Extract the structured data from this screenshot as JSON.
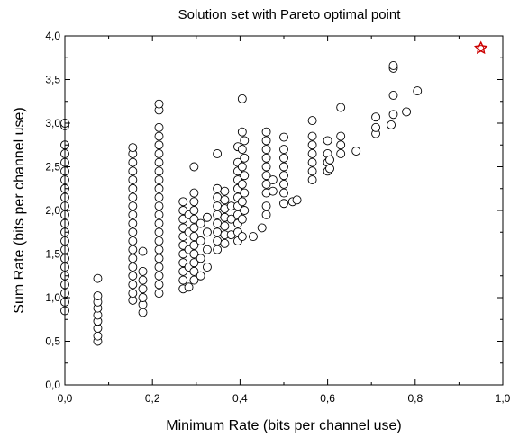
{
  "chart_data": {
    "type": "scatter",
    "title": "Solution set with Pareto optimal point",
    "xlabel": "Minimum Rate (bits per channel use)",
    "ylabel": "Sum Rate (bits per channel use)",
    "xlim": [
      0,
      1
    ],
    "ylim": [
      0,
      4
    ],
    "x_ticks": [
      "0,0",
      "0,2",
      "0,4",
      "0,6",
      "0,8",
      "1,0"
    ],
    "y_ticks": [
      "0,0",
      "0,5",
      "1,0",
      "1,5",
      "2,0",
      "2,5",
      "3,0",
      "3,5",
      "4,0"
    ],
    "grid": false,
    "legend": "none",
    "marker_color": "#000000",
    "pareto_color": "#cc0000",
    "series": [
      {
        "marker": "circle",
        "points": [
          [
            0.0,
            0.85
          ],
          [
            0.0,
            0.95
          ],
          [
            0.0,
            1.05
          ],
          [
            0.0,
            1.15
          ],
          [
            0.0,
            1.25
          ],
          [
            0.0,
            1.35
          ],
          [
            0.0,
            1.45
          ],
          [
            0.0,
            1.55
          ],
          [
            0.0,
            1.65
          ],
          [
            0.0,
            1.75
          ],
          [
            0.0,
            1.85
          ],
          [
            0.0,
            1.95
          ],
          [
            0.0,
            2.05
          ],
          [
            0.0,
            2.15
          ],
          [
            0.0,
            2.25
          ],
          [
            0.0,
            2.35
          ],
          [
            0.0,
            2.45
          ],
          [
            0.0,
            2.55
          ],
          [
            0.0,
            2.65
          ],
          [
            0.0,
            2.75
          ],
          [
            0.0,
            2.97
          ],
          [
            0.0,
            3.0
          ],
          [
            0.075,
            0.5
          ],
          [
            0.075,
            0.56
          ],
          [
            0.075,
            0.65
          ],
          [
            0.075,
            0.73
          ],
          [
            0.075,
            0.8
          ],
          [
            0.075,
            0.88
          ],
          [
            0.075,
            0.95
          ],
          [
            0.075,
            1.02
          ],
          [
            0.075,
            1.22
          ],
          [
            0.155,
            0.97
          ],
          [
            0.155,
            1.05
          ],
          [
            0.155,
            1.15
          ],
          [
            0.155,
            1.25
          ],
          [
            0.155,
            1.35
          ],
          [
            0.155,
            1.45
          ],
          [
            0.155,
            1.55
          ],
          [
            0.155,
            1.65
          ],
          [
            0.155,
            1.75
          ],
          [
            0.155,
            1.85
          ],
          [
            0.155,
            1.95
          ],
          [
            0.155,
            2.05
          ],
          [
            0.155,
            2.15
          ],
          [
            0.155,
            2.25
          ],
          [
            0.155,
            2.35
          ],
          [
            0.155,
            2.45
          ],
          [
            0.155,
            2.55
          ],
          [
            0.155,
            2.65
          ],
          [
            0.155,
            2.72
          ],
          [
            0.178,
            0.83
          ],
          [
            0.178,
            0.92
          ],
          [
            0.178,
            1.0
          ],
          [
            0.178,
            1.1
          ],
          [
            0.178,
            1.2
          ],
          [
            0.178,
            1.3
          ],
          [
            0.178,
            1.53
          ],
          [
            0.215,
            1.05
          ],
          [
            0.215,
            1.15
          ],
          [
            0.215,
            1.25
          ],
          [
            0.215,
            1.35
          ],
          [
            0.215,
            1.45
          ],
          [
            0.215,
            1.55
          ],
          [
            0.215,
            1.65
          ],
          [
            0.215,
            1.75
          ],
          [
            0.215,
            1.85
          ],
          [
            0.215,
            1.95
          ],
          [
            0.215,
            2.05
          ],
          [
            0.215,
            2.15
          ],
          [
            0.215,
            2.25
          ],
          [
            0.215,
            2.35
          ],
          [
            0.215,
            2.45
          ],
          [
            0.215,
            2.55
          ],
          [
            0.215,
            2.65
          ],
          [
            0.215,
            2.75
          ],
          [
            0.215,
            2.85
          ],
          [
            0.215,
            2.95
          ],
          [
            0.215,
            3.15
          ],
          [
            0.215,
            3.22
          ],
          [
            0.27,
            1.1
          ],
          [
            0.27,
            1.2
          ],
          [
            0.27,
            1.3
          ],
          [
            0.27,
            1.4
          ],
          [
            0.27,
            1.5
          ],
          [
            0.27,
            1.6
          ],
          [
            0.27,
            1.7
          ],
          [
            0.27,
            1.8
          ],
          [
            0.27,
            1.9
          ],
          [
            0.27,
            2.0
          ],
          [
            0.27,
            2.1
          ],
          [
            0.283,
            1.12
          ],
          [
            0.283,
            1.35
          ],
          [
            0.283,
            1.55
          ],
          [
            0.283,
            1.75
          ],
          [
            0.283,
            1.95
          ],
          [
            0.295,
            1.2
          ],
          [
            0.295,
            1.3
          ],
          [
            0.295,
            1.4
          ],
          [
            0.295,
            1.5
          ],
          [
            0.295,
            1.6
          ],
          [
            0.295,
            1.7
          ],
          [
            0.295,
            1.8
          ],
          [
            0.295,
            1.9
          ],
          [
            0.295,
            2.0
          ],
          [
            0.295,
            2.1
          ],
          [
            0.295,
            2.2
          ],
          [
            0.295,
            2.5
          ],
          [
            0.31,
            1.25
          ],
          [
            0.31,
            1.45
          ],
          [
            0.31,
            1.65
          ],
          [
            0.31,
            1.85
          ],
          [
            0.325,
            1.35
          ],
          [
            0.325,
            1.55
          ],
          [
            0.325,
            1.75
          ],
          [
            0.325,
            1.92
          ],
          [
            0.348,
            1.55
          ],
          [
            0.348,
            1.65
          ],
          [
            0.348,
            1.75
          ],
          [
            0.348,
            1.85
          ],
          [
            0.348,
            1.95
          ],
          [
            0.348,
            2.05
          ],
          [
            0.348,
            2.15
          ],
          [
            0.348,
            2.25
          ],
          [
            0.348,
            2.65
          ],
          [
            0.365,
            1.62
          ],
          [
            0.365,
            1.72
          ],
          [
            0.365,
            1.82
          ],
          [
            0.365,
            1.92
          ],
          [
            0.365,
            2.02
          ],
          [
            0.365,
            2.12
          ],
          [
            0.365,
            2.22
          ],
          [
            0.38,
            1.72
          ],
          [
            0.38,
            1.9
          ],
          [
            0.38,
            2.05
          ],
          [
            0.395,
            1.65
          ],
          [
            0.395,
            1.75
          ],
          [
            0.395,
            1.85
          ],
          [
            0.395,
            1.95
          ],
          [
            0.395,
            2.05
          ],
          [
            0.395,
            2.15
          ],
          [
            0.395,
            2.25
          ],
          [
            0.395,
            2.35
          ],
          [
            0.395,
            2.45
          ],
          [
            0.395,
            2.55
          ],
          [
            0.395,
            2.73
          ],
          [
            0.405,
            1.7
          ],
          [
            0.405,
            1.9
          ],
          [
            0.405,
            2.1
          ],
          [
            0.405,
            2.3
          ],
          [
            0.405,
            2.5
          ],
          [
            0.405,
            2.7
          ],
          [
            0.405,
            2.9
          ],
          [
            0.405,
            3.28
          ],
          [
            0.41,
            2.0
          ],
          [
            0.41,
            2.2
          ],
          [
            0.41,
            2.4
          ],
          [
            0.41,
            2.6
          ],
          [
            0.41,
            2.8
          ],
          [
            0.43,
            1.7
          ],
          [
            0.45,
            1.8
          ],
          [
            0.46,
            1.95
          ],
          [
            0.46,
            2.05
          ],
          [
            0.46,
            2.2
          ],
          [
            0.46,
            2.3
          ],
          [
            0.46,
            2.4
          ],
          [
            0.46,
            2.5
          ],
          [
            0.46,
            2.6
          ],
          [
            0.46,
            2.7
          ],
          [
            0.46,
            2.8
          ],
          [
            0.46,
            2.9
          ],
          [
            0.475,
            2.22
          ],
          [
            0.475,
            2.35
          ],
          [
            0.5,
            2.08
          ],
          [
            0.5,
            2.2
          ],
          [
            0.5,
            2.3
          ],
          [
            0.5,
            2.4
          ],
          [
            0.5,
            2.5
          ],
          [
            0.5,
            2.6
          ],
          [
            0.5,
            2.7
          ],
          [
            0.5,
            2.84
          ],
          [
            0.52,
            2.1
          ],
          [
            0.53,
            2.12
          ],
          [
            0.565,
            2.35
          ],
          [
            0.565,
            2.45
          ],
          [
            0.565,
            2.55
          ],
          [
            0.565,
            2.65
          ],
          [
            0.565,
            2.75
          ],
          [
            0.565,
            2.85
          ],
          [
            0.565,
            3.03
          ],
          [
            0.6,
            2.45
          ],
          [
            0.6,
            2.55
          ],
          [
            0.6,
            2.65
          ],
          [
            0.6,
            2.8
          ],
          [
            0.605,
            2.48
          ],
          [
            0.605,
            2.58
          ],
          [
            0.63,
            2.65
          ],
          [
            0.63,
            2.75
          ],
          [
            0.63,
            2.85
          ],
          [
            0.63,
            3.18
          ],
          [
            0.665,
            2.68
          ],
          [
            0.71,
            2.88
          ],
          [
            0.71,
            2.95
          ],
          [
            0.71,
            3.07
          ],
          [
            0.745,
            2.98
          ],
          [
            0.75,
            3.1
          ],
          [
            0.75,
            3.32
          ],
          [
            0.75,
            3.63
          ],
          [
            0.75,
            3.66
          ],
          [
            0.78,
            3.13
          ],
          [
            0.805,
            3.37
          ]
        ]
      },
      {
        "name": "Pareto optimal point",
        "marker": "star",
        "points": [
          [
            0.95,
            3.86
          ]
        ]
      }
    ]
  }
}
